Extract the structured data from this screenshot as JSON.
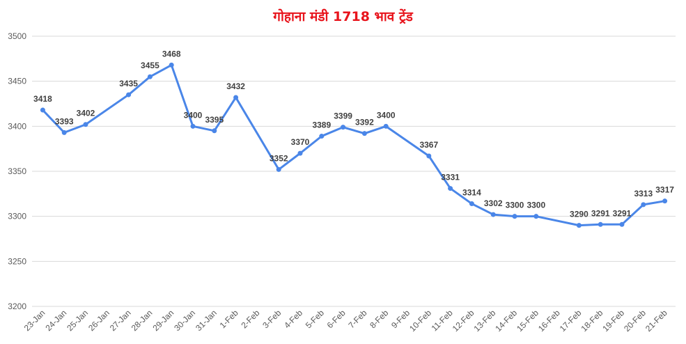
{
  "chart_data": {
    "type": "line",
    "title": "गोहाना मंडी 1718 भाव ट्रेंड",
    "xlabel": "",
    "ylabel": "",
    "ylim": [
      3200,
      3500
    ],
    "yticks": [
      3200,
      3250,
      3300,
      3350,
      3400,
      3450,
      3500
    ],
    "grid": true,
    "legend": "none",
    "line_color": "#4a86e8",
    "categories": [
      "23-Jan",
      "24-Jan",
      "25-Jan",
      "26-Jan",
      "27-Jan",
      "28-Jan",
      "29-Jan",
      "30-Jan",
      "31-Jan",
      "1-Feb",
      "2-Feb",
      "3-Feb",
      "4-Feb",
      "5-Feb",
      "6-Feb",
      "7-Feb",
      "8-Feb",
      "9-Feb",
      "10-Feb",
      "11-Feb",
      "12-Feb",
      "13-Feb",
      "14-Feb",
      "15-Feb",
      "16-Feb",
      "17-Feb",
      "18-Feb",
      "19-Feb",
      "20-Feb",
      "21-Feb"
    ],
    "points": [
      {
        "x": "23-Jan",
        "y": 3418
      },
      {
        "x": "24-Jan",
        "y": 3393
      },
      {
        "x": "25-Jan",
        "y": 3402
      },
      {
        "x": "27-Jan",
        "y": 3435
      },
      {
        "x": "28-Jan",
        "y": 3455
      },
      {
        "x": "29-Jan",
        "y": 3468
      },
      {
        "x": "30-Jan",
        "y": 3400
      },
      {
        "x": "31-Jan",
        "y": 3395
      },
      {
        "x": "1-Feb",
        "y": 3432
      },
      {
        "x": "3-Feb",
        "y": 3352
      },
      {
        "x": "4-Feb",
        "y": 3370
      },
      {
        "x": "5-Feb",
        "y": 3389
      },
      {
        "x": "6-Feb",
        "y": 3399
      },
      {
        "x": "7-Feb",
        "y": 3392
      },
      {
        "x": "8-Feb",
        "y": 3400
      },
      {
        "x": "10-Feb",
        "y": 3367
      },
      {
        "x": "11-Feb",
        "y": 3331
      },
      {
        "x": "12-Feb",
        "y": 3314
      },
      {
        "x": "13-Feb",
        "y": 3302
      },
      {
        "x": "14-Feb",
        "y": 3300
      },
      {
        "x": "15-Feb",
        "y": 3300
      },
      {
        "x": "17-Feb",
        "y": 3290
      },
      {
        "x": "18-Feb",
        "y": 3291
      },
      {
        "x": "19-Feb",
        "y": 3291
      },
      {
        "x": "20-Feb",
        "y": 3313
      },
      {
        "x": "21-Feb",
        "y": 3317
      }
    ]
  }
}
